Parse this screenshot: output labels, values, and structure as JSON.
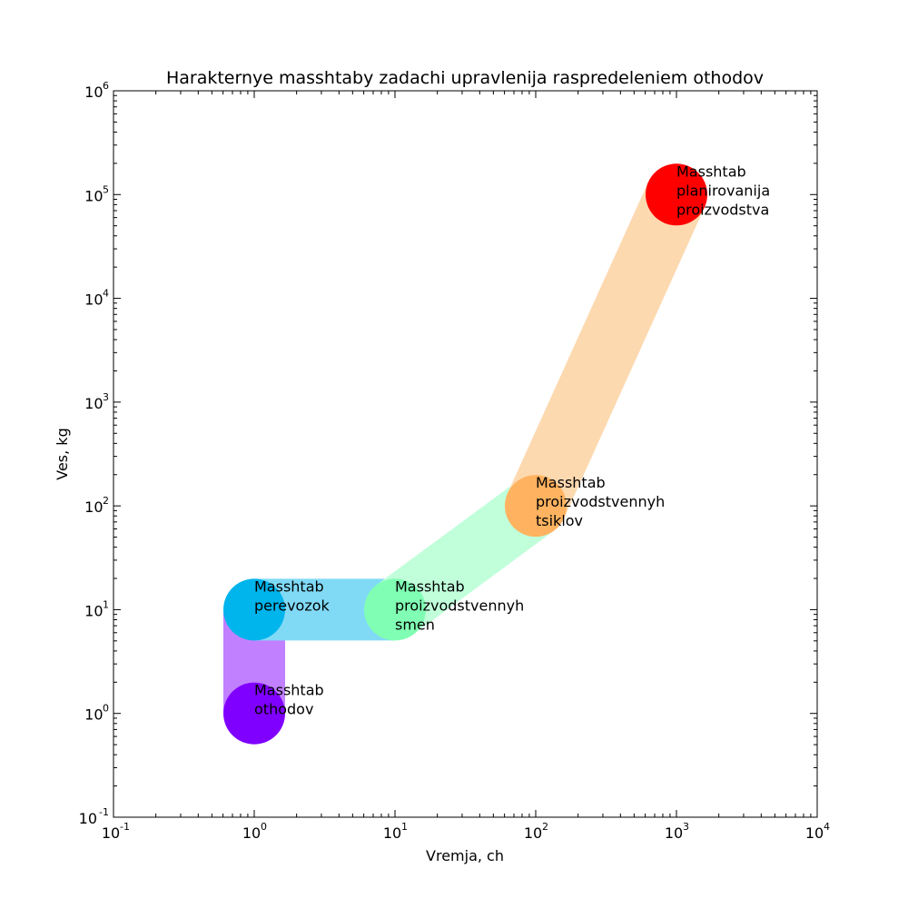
{
  "chart_data": {
    "type": "scatter",
    "title": "Harakternye masshtaby zadachi upravlenija raspredeleniem othodov",
    "xlabel": "Vremja, ch",
    "ylabel": "Ves, kg",
    "xscale": "log",
    "yscale": "log",
    "xlim": [
      0.1,
      10000
    ],
    "ylim": [
      0.1,
      1000000
    ],
    "grid": false,
    "x_ticks": [
      {
        "base": "10",
        "exp": "-1"
      },
      {
        "base": "10",
        "exp": "0"
      },
      {
        "base": "10",
        "exp": "1"
      },
      {
        "base": "10",
        "exp": "2"
      },
      {
        "base": "10",
        "exp": "3"
      },
      {
        "base": "10",
        "exp": "4"
      }
    ],
    "y_ticks": [
      {
        "base": "10",
        "exp": "-1"
      },
      {
        "base": "10",
        "exp": "0"
      },
      {
        "base": "10",
        "exp": "1"
      },
      {
        "base": "10",
        "exp": "2"
      },
      {
        "base": "10",
        "exp": "3"
      },
      {
        "base": "10",
        "exp": "4"
      },
      {
        "base": "10",
        "exp": "5"
      },
      {
        "base": "10",
        "exp": "6"
      }
    ],
    "points": [
      {
        "x": 1,
        "y": 1,
        "color": "#8000ff",
        "band_color": "#c080ff",
        "label_lines": [
          "Masshtab",
          "othodov"
        ]
      },
      {
        "x": 1,
        "y": 10,
        "color": "#00b4ec",
        "band_color": "#80daf6",
        "label_lines": [
          "Masshtab",
          "perevozok"
        ]
      },
      {
        "x": 10,
        "y": 10,
        "color": "#80ffb4",
        "band_color": "#c0ffda",
        "label_lines": [
          "Masshtab",
          "proizvodstvennyh",
          "smen"
        ]
      },
      {
        "x": 100,
        "y": 100,
        "color": "#ffb360",
        "band_color": "#fdd9b0",
        "label_lines": [
          "Masshtab",
          "proizvodstvennyh",
          "tsiklov"
        ]
      },
      {
        "x": 1000,
        "y": 100000,
        "color": "#ff0000",
        "band_color": null,
        "label_lines": [
          "Masshtab",
          "planirovanija",
          "proizvodstva"
        ]
      }
    ]
  }
}
